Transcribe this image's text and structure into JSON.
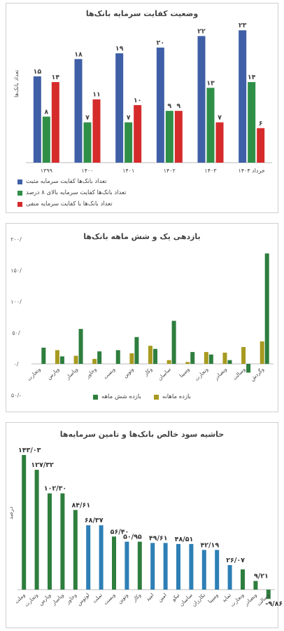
{
  "colors": {
    "blue": "#3f5fa6",
    "green": "#2f8f47",
    "red": "#d52b2b",
    "olive": "#a89a21",
    "dkgreen": "#2e7e3e",
    "teal": "#2e7fb5",
    "axis": "#bbbbbb"
  },
  "chart_data": [
    {
      "type": "bar",
      "title": "وضعیت کفایت سرمایه بانک‌ها",
      "ylabel": "تعداد بانک‌ها",
      "categories": [
        "۱۳۹۹",
        "۱۴۰۰",
        "۱۴۰۱",
        "۱۴۰۲",
        "۱۴۰۳",
        "خرداد ۱۴۰۴"
      ],
      "series": [
        {
          "name": "تعداد بانک‌ها کفایت سرمایه مثبت",
          "color": "#3f5fa6",
          "values": [
            15,
            18,
            19,
            20,
            22,
            23
          ],
          "labels": [
            "۱۵",
            "۱۸",
            "۱۹",
            "۲۰",
            "۲۲",
            "۲۳"
          ]
        },
        {
          "name": "تعداد بانک‌ها کفایت سرمایه بالای ۸ درصد",
          "color": "#2f8f47",
          "values": [
            8,
            7,
            7,
            9,
            13,
            14
          ],
          "labels": [
            "۸",
            "۷",
            "۷",
            "۹",
            "۱۳",
            "۱۴"
          ]
        },
        {
          "name": "تعداد بانک‌ها با کفایت سرمایه منفی",
          "color": "#d52b2b",
          "values": [
            14,
            11,
            10,
            9,
            7,
            6
          ],
          "labels": [
            "۱۴",
            "۱۱",
            "۱۰",
            "۹",
            "۷",
            "۶"
          ]
        }
      ],
      "ylim": [
        0,
        24
      ],
      "legend": "bottom"
    },
    {
      "type": "bar",
      "title": "بازدهی یک و شش ماهه بانک‌ها",
      "categories": [
        "وتجارت",
        "وپارس",
        "وپاسار",
        "وخاور",
        "وبست",
        "وتوین",
        "وکار",
        "ساسان",
        "وسینا",
        "ونجارت",
        "وبصادر",
        "وسالت",
        "وگردش"
      ],
      "series": [
        {
          "name": "بازده ماهانه",
          "color": "#a89a21",
          "values": [
            0,
            22,
            13,
            8,
            0,
            17,
            29,
            6,
            3,
            19,
            18,
            27,
            36
          ]
        },
        {
          "name": "بازده شش ماهه",
          "color": "#2e7e3e",
          "values": [
            26,
            12,
            56,
            20,
            22,
            43,
            24,
            69,
            19,
            15,
            6,
            -14,
            177
          ]
        }
      ],
      "yticks": [
        "۲۰۰/",
        "۱۵۰/",
        "۱۰۰/",
        "۵۰/",
        "۰/",
        "۵۰/-"
      ],
      "ylim": [
        -50,
        200
      ],
      "legend": "bottom"
    },
    {
      "type": "bar",
      "title": "حاشیه سود خالص بانک‌ها و تامین سرمایه‌ها",
      "ylabel": "درصد",
      "categories": [
        "وملت",
        "وتجارت",
        "وپارس",
        "وپاسار",
        "وخاور",
        "لوتوس",
        "تملت",
        "وبست",
        "وتوین",
        "وکار",
        "امید",
        "امین",
        "تیکو",
        "ساسان",
        "نکارزان",
        "وسینا",
        "تماید",
        "ونجارت",
        "وبصادر",
        "وسالت"
      ],
      "values": [
        143.03,
        127.32,
        102.3,
        102.3,
        84.61,
        68.37,
        68.37,
        56.4,
        50.95,
        50.95,
        49.61,
        49.61,
        48.51,
        48.51,
        42.19,
        42.19,
        26.07,
        21.5,
        9.21,
        -9.86
      ],
      "colors": [
        "g",
        "g",
        "g",
        "g",
        "g",
        "t",
        "t",
        "g",
        "t",
        "g",
        "t",
        "t",
        "t",
        "t",
        "t",
        "t",
        "t",
        "g",
        "g",
        "g"
      ],
      "labels": [
        "۱۴۳/۰۳",
        "۱۲۷/۳۲",
        "۱۰۲/۳۰",
        "",
        "۸۴/۶۱",
        "۶۸/۳۷",
        "",
        "۵۶/۴۰",
        "۵۰/۹۵",
        "",
        "۴۹/۶۱",
        "",
        "۴۸/۵۱",
        "",
        "۴۲/۱۹",
        "",
        "۲۶/۰۷",
        "",
        "۹/۲۱",
        "-۹/۸۶"
      ],
      "ylim": [
        -15,
        150
      ]
    }
  ]
}
